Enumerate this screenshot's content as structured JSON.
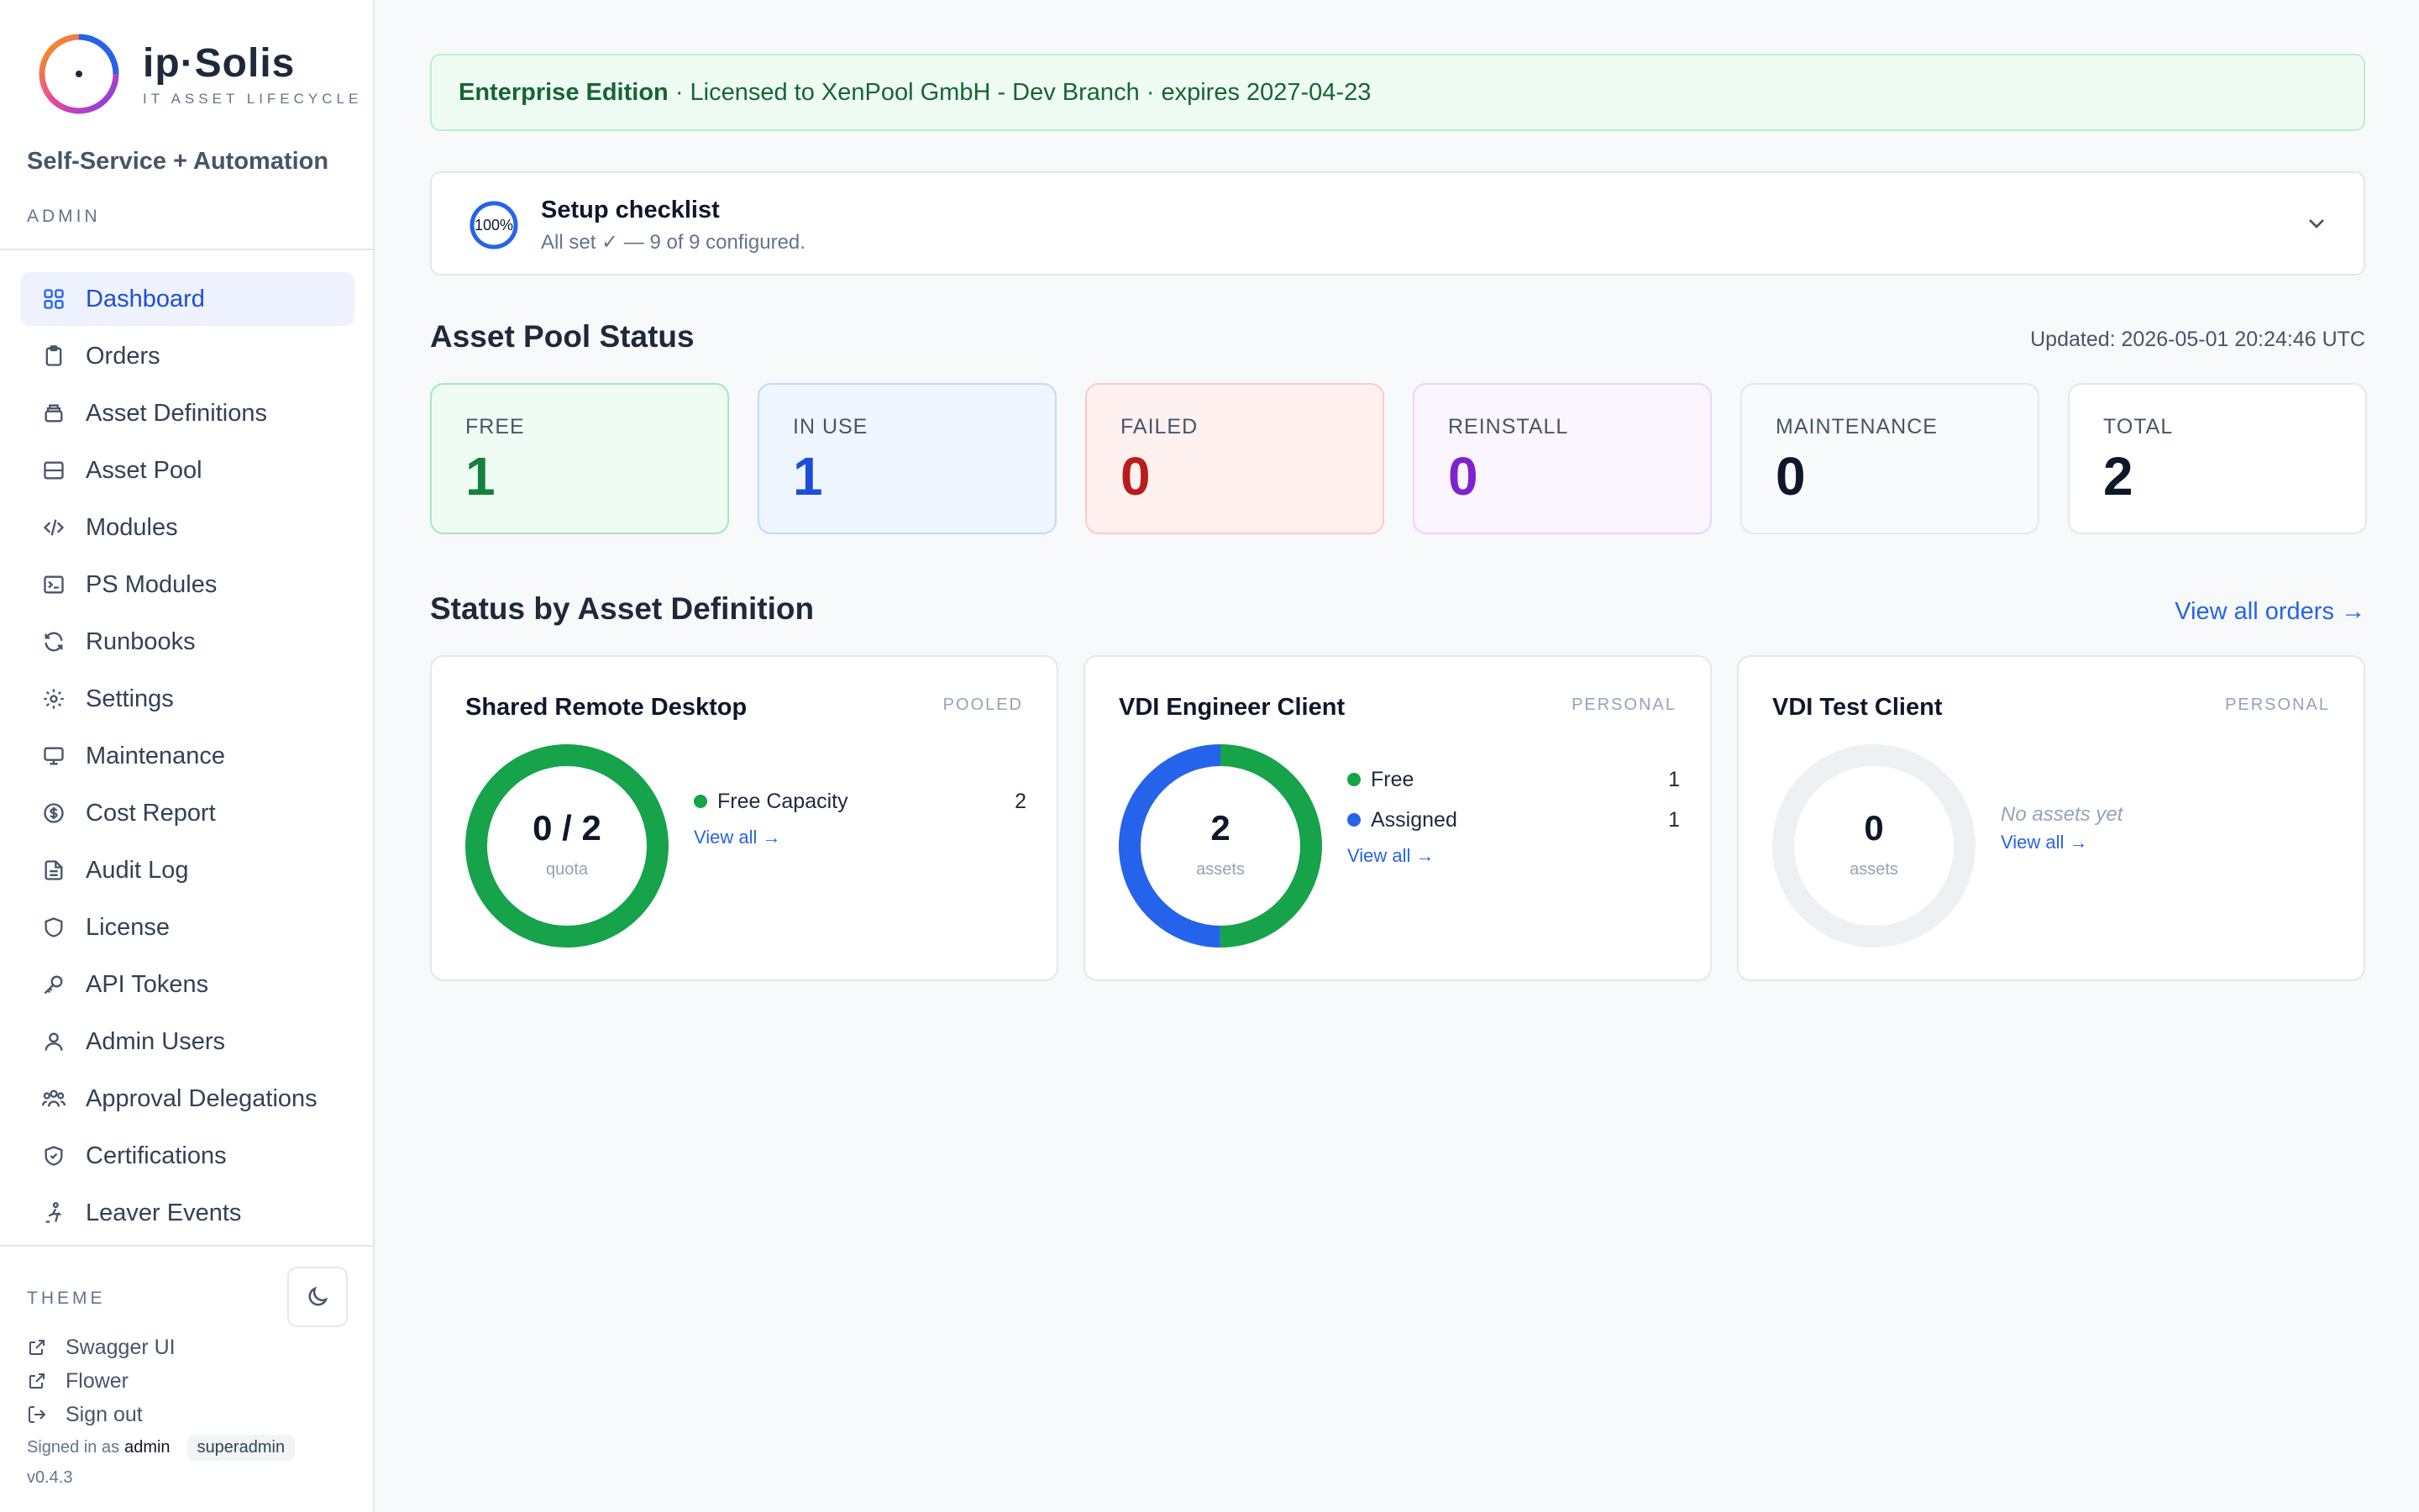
{
  "brand": {
    "name": "ip·Solis",
    "tagline": "IT ASSET LIFECYCLE",
    "subtitle": "Self-Service + Automation",
    "role": "ADMIN"
  },
  "nav": [
    {
      "label": "Dashboard",
      "icon": "grid-icon"
    },
    {
      "label": "Orders",
      "icon": "clipboard-icon"
    },
    {
      "label": "Asset Definitions",
      "icon": "layers-icon"
    },
    {
      "label": "Asset Pool",
      "icon": "server-icon"
    },
    {
      "label": "Modules",
      "icon": "code-icon"
    },
    {
      "label": "PS Modules",
      "icon": "terminal-icon"
    },
    {
      "label": "Runbooks",
      "icon": "refresh-icon"
    },
    {
      "label": "Settings",
      "icon": "gear-icon"
    },
    {
      "label": "Maintenance",
      "icon": "monitor-icon"
    },
    {
      "label": "Cost Report",
      "icon": "dollar-icon"
    },
    {
      "label": "Audit Log",
      "icon": "file-icon"
    },
    {
      "label": "License",
      "icon": "shield-icon"
    },
    {
      "label": "API Tokens",
      "icon": "key-icon"
    },
    {
      "label": "Admin Users",
      "icon": "user-icon"
    },
    {
      "label": "Approval Delegations",
      "icon": "users-icon"
    },
    {
      "label": "Certifications",
      "icon": "shield-check-icon"
    },
    {
      "label": "Leaver Events",
      "icon": "door-exit-icon"
    }
  ],
  "footer": {
    "theme_label": "THEME",
    "links": [
      "Swagger UI",
      "Flower",
      "Sign out"
    ],
    "signed_in_as": "Signed in as",
    "user": "admin",
    "role_badge": "superadmin",
    "version": "v0.4.3"
  },
  "license": {
    "edition": "Enterprise Edition",
    "details": " · Licensed to XenPool GmbH - Dev Branch · expires 2027-04-23"
  },
  "checklist": {
    "percent_label": "100%",
    "percent": 100,
    "title": "Setup checklist",
    "subtitle": "All set ✓ — 9 of 9 configured."
  },
  "pool": {
    "title": "Asset Pool Status",
    "updated": "Updated: 2026-05-01 20:24:46 UTC",
    "stats": [
      {
        "label": "FREE",
        "value": "1",
        "bg": "#effcf3",
        "border": "#a7e8bd",
        "color": "#15803d"
      },
      {
        "label": "IN USE",
        "value": "1",
        "bg": "#eff6ff",
        "border": "#bfdbfe",
        "color": "#1d4ed8"
      },
      {
        "label": "FAILED",
        "value": "0",
        "bg": "#fff1f0",
        "border": "#fecaca",
        "color": "#b91c1c"
      },
      {
        "label": "REINSTALL",
        "value": "0",
        "bg": "#faf5ff",
        "border": "#e9d5ff",
        "color": "#7e22ce"
      },
      {
        "label": "MAINTENANCE",
        "value": "0",
        "bg": "#f8fafc",
        "border": "#e5e7eb",
        "color": "#0f172a"
      },
      {
        "label": "TOTAL",
        "value": "2",
        "bg": "#ffffff",
        "border": "#e5e7eb",
        "color": "#0f172a"
      }
    ]
  },
  "definitions": {
    "title": "Status by Asset Definition",
    "view_all_orders": "View all orders →",
    "cards": [
      {
        "title": "Shared Remote Desktop",
        "kind": "POOLED",
        "center": "0 / 2",
        "unit": "quota",
        "segments": [
          {
            "color": "#16a34a",
            "value": 2
          }
        ],
        "legend": [
          {
            "name": "Free Capacity",
            "value": "2",
            "color": "#16a34a"
          }
        ],
        "view_all": "View all →",
        "empty_text": ""
      },
      {
        "title": "VDI Engineer Client",
        "kind": "PERSONAL",
        "center": "2",
        "unit": "assets",
        "segments": [
          {
            "color": "#16a34a",
            "value": 1
          },
          {
            "color": "#2563eb",
            "value": 1
          }
        ],
        "legend": [
          {
            "name": "Free",
            "value": "1",
            "color": "#16a34a"
          },
          {
            "name": "Assigned",
            "value": "1",
            "color": "#2563eb"
          }
        ],
        "view_all": "View all →",
        "empty_text": ""
      },
      {
        "title": "VDI Test Client",
        "kind": "PERSONAL",
        "center": "0",
        "unit": "assets",
        "segments": [],
        "legend": [],
        "view_all": "View all →",
        "empty_text": "No assets yet"
      }
    ]
  }
}
